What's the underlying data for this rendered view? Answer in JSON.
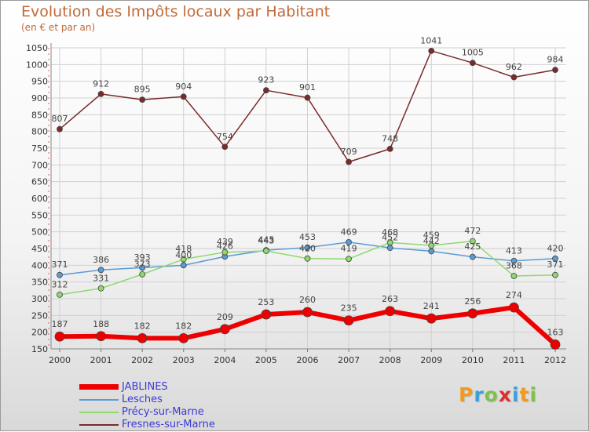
{
  "header": {
    "title": "Evolution des Impôts locaux par Habitant",
    "subtitle": "(en € et par an)"
  },
  "logo": {
    "letters": [
      "P",
      "r",
      "o",
      "x",
      "i",
      "t",
      "i"
    ],
    "colors": [
      "#f29a1d",
      "#3aa0d8",
      "#7dc24a",
      "#d8312f",
      "#3aa0d8",
      "#f29a1d",
      "#7dc24a"
    ]
  },
  "chart_data": {
    "type": "line",
    "title": "Evolution des Impôts locaux par Habitant",
    "subtitle": "(en € et par an)",
    "xlabel": "",
    "ylabel": "",
    "x": [
      "2000",
      "2001",
      "2002",
      "2003",
      "2004",
      "2005",
      "2006",
      "2007",
      "2008",
      "2009",
      "2010",
      "2011",
      "2012"
    ],
    "ylim": [
      150,
      1050
    ],
    "yticks": [
      150,
      200,
      250,
      300,
      350,
      400,
      450,
      500,
      550,
      600,
      650,
      700,
      750,
      800,
      850,
      900,
      950,
      1000,
      1050
    ],
    "grid": true,
    "legend_position": "bottom-left",
    "series": [
      {
        "name": "Fresnes-sur-Marne",
        "color": "#7a2a2a",
        "values": [
          807,
          912,
          895,
          904,
          754,
          923,
          901,
          709,
          748,
          1041,
          1005,
          962,
          984
        ]
      },
      {
        "name": "Lesches",
        "color": "#5a9bd5",
        "values": [
          371,
          386,
          393,
          400,
          426,
          445,
          453,
          469,
          452,
          442,
          425,
          413,
          420
        ]
      },
      {
        "name": "Précy-sur-Marne",
        "color": "#8ed86e",
        "values": [
          312,
          331,
          373,
          418,
          439,
          443,
          420,
          419,
          468,
          459,
          472,
          368,
          371
        ]
      },
      {
        "name": "JABLINES",
        "color": "#ee0000",
        "values": [
          187,
          188,
          182,
          182,
          209,
          253,
          260,
          235,
          263,
          241,
          256,
          274,
          163
        ]
      }
    ],
    "legend_order": [
      "JABLINES",
      "Lesches",
      "Précy-sur-Marne",
      "Fresnes-sur-Marne"
    ]
  }
}
